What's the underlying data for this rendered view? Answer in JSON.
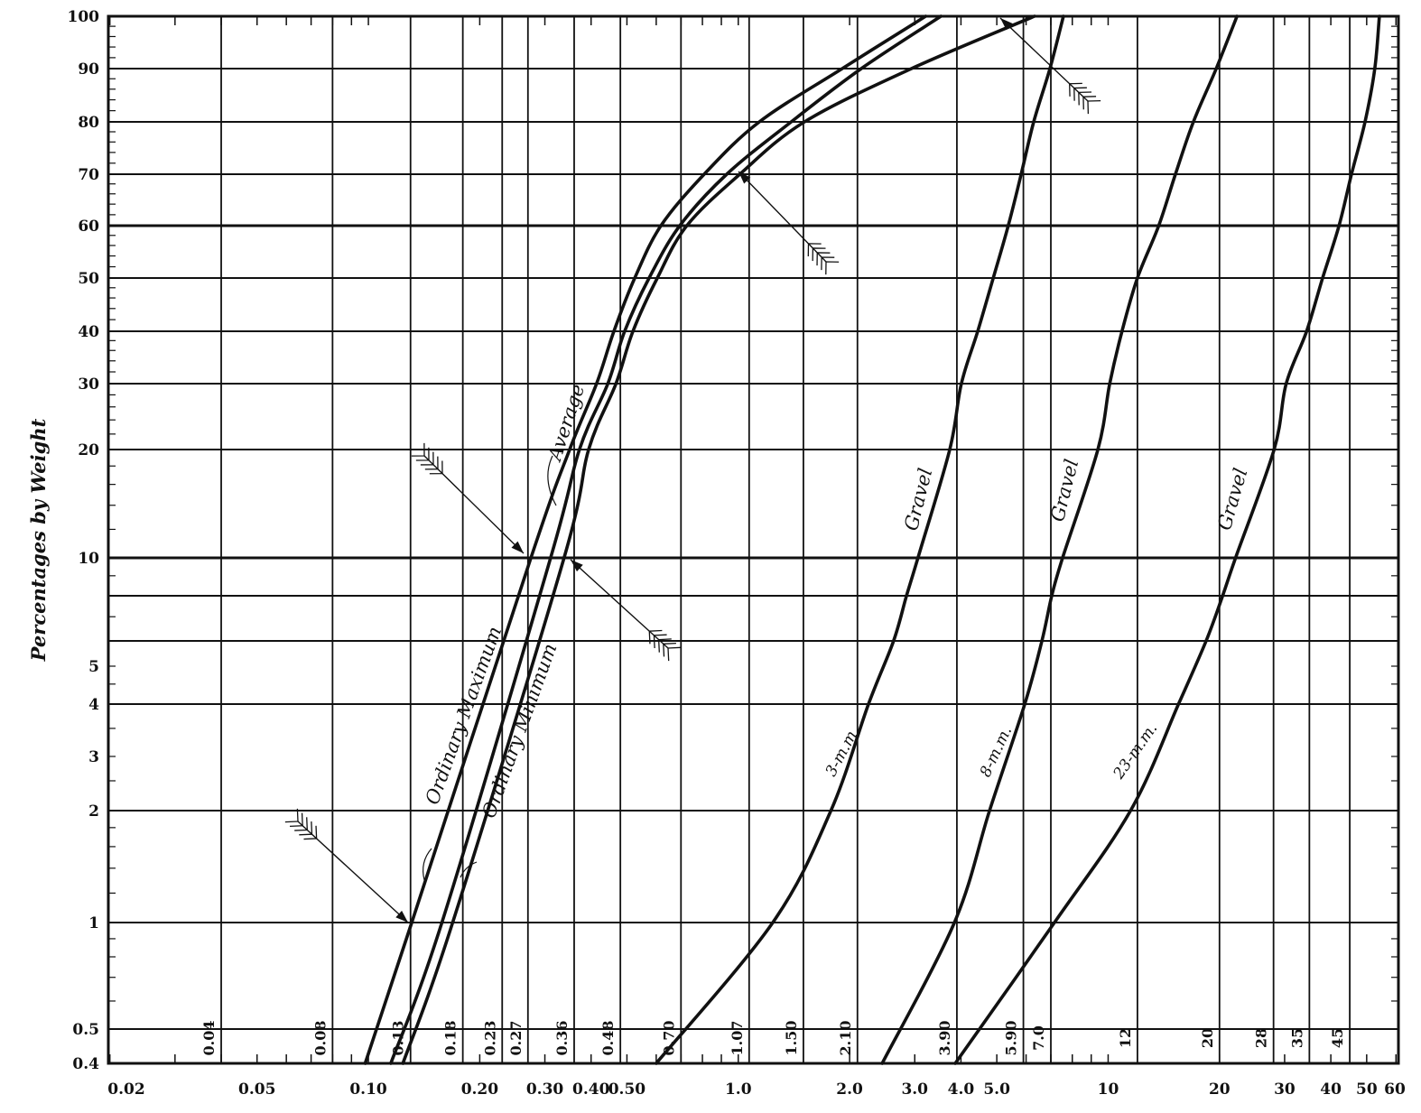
{
  "chart_data": {
    "type": "line",
    "title": "",
    "xlabel": "",
    "ylabel": "Percentages by Weight",
    "x_scale": "log",
    "y_scale": "log below 20, near-linear above",
    "xlim": [
      0.02,
      60
    ],
    "ylim": [
      0.4,
      100
    ],
    "grid": true,
    "legend": "none (labels along curves)",
    "line_color": "#111111",
    "background_color": "#ffffff",
    "x_tick_labels": [
      "0.02",
      "0.05",
      "0.10",
      "0.20",
      "0.30",
      "0.40",
      "0.50",
      "1.0",
      "2.0",
      "3.0",
      "4.0",
      "5.0",
      "10",
      "20",
      "30",
      "40",
      "50",
      "60"
    ],
    "x_tick_values": [
      0.02,
      0.05,
      0.1,
      0.2,
      0.3,
      0.4,
      0.5,
      1.0,
      2.0,
      3.0,
      4.0,
      5.0,
      10,
      20,
      30,
      40,
      50,
      60
    ],
    "sieve_labels": [
      "0.04",
      "0.08",
      "0.13",
      "0.18",
      "0.23",
      "0.27",
      "0.36",
      "0.48",
      "0.70",
      "1.07",
      "1.50",
      "2.10",
      "3.90",
      "5.90",
      "7.0",
      "12",
      "20",
      "28",
      "35",
      "45"
    ],
    "sieve_values": [
      0.04,
      0.08,
      0.13,
      0.18,
      0.23,
      0.27,
      0.36,
      0.48,
      0.7,
      1.07,
      1.5,
      2.1,
      3.9,
      5.9,
      7.0,
      12,
      20,
      28,
      35,
      45
    ],
    "y_tick_labels": [
      "100",
      "90",
      "80",
      "70",
      "60",
      "50",
      "40",
      "30",
      "20",
      "10",
      "5",
      "4",
      "3",
      "2",
      "1",
      "0.5",
      "0.4"
    ],
    "y_tick_values": [
      100,
      90,
      80,
      70,
      60,
      50,
      40,
      30,
      20,
      10,
      5,
      4,
      3,
      2,
      1,
      0.5,
      0.4
    ],
    "y_grid_values": [
      0.5,
      1,
      2,
      4,
      6,
      8,
      10,
      20,
      30,
      40,
      50,
      60,
      70,
      80,
      90
    ],
    "series": [
      {
        "label": "Ordinary Maximum",
        "x": [
          0.098,
          0.131,
          0.275,
          0.35,
          0.414,
          0.461,
          0.525,
          0.618,
          0.809,
          1.14,
          1.91,
          3.21
        ],
        "y": [
          0.4,
          1,
          10,
          20,
          30,
          40,
          50,
          60,
          70,
          80,
          90,
          100
        ]
      },
      {
        "label": "Average",
        "x": [
          0.115,
          0.158,
          0.311,
          0.372,
          0.444,
          0.493,
          0.574,
          0.695,
          0.931,
          1.39,
          2.15,
          3.53
        ],
        "y": [
          0.4,
          1,
          10,
          20,
          30,
          40,
          50,
          60,
          70,
          80,
          90,
          100
        ]
      },
      {
        "label": "Ordinary Minimum",
        "x": [
          0.124,
          0.169,
          0.338,
          0.394,
          0.467,
          0.519,
          0.604,
          0.726,
          1.01,
          1.51,
          2.94,
          6.32
        ],
        "y": [
          0.4,
          1,
          10,
          20,
          30,
          40,
          50,
          60,
          70,
          80,
          90,
          100
        ]
      },
      {
        "label": "Gravel",
        "size_label": "3-m.m.",
        "x": [
          0.6,
          1.24,
          1.78,
          2.25,
          2.63,
          2.85,
          3.06,
          3.73,
          4.01,
          4.44,
          4.89,
          5.37,
          5.82,
          6.29,
          6.96,
          7.57
        ],
        "y": [
          0.4,
          1,
          2,
          4,
          6,
          8,
          10,
          20,
          30,
          40,
          50,
          60,
          70,
          80,
          90,
          100
        ]
      },
      {
        "label": "Gravel",
        "size_label": "8-m.m.",
        "x": [
          2.45,
          3.84,
          4.78,
          5.95,
          6.62,
          7.04,
          7.53,
          9.38,
          10.1,
          10.9,
          12.0,
          13.7,
          15.2,
          17.0,
          19.6,
          22.3
        ],
        "y": [
          0.4,
          1,
          2,
          4,
          6,
          8,
          10,
          20,
          30,
          40,
          50,
          60,
          70,
          80,
          90,
          100
        ]
      },
      {
        "label": "Gravel",
        "size_label": "23-m.m.",
        "x": [
          3.86,
          7.16,
          11.5,
          15.5,
          18.4,
          20.4,
          22.1,
          28.1,
          30.3,
          34.4,
          38.0,
          42.1,
          45.5,
          49.5,
          52.6,
          54.1
        ],
        "y": [
          0.4,
          1,
          2,
          4,
          6,
          8,
          10,
          20,
          30,
          40,
          50,
          60,
          70,
          80,
          90,
          100
        ]
      }
    ]
  }
}
